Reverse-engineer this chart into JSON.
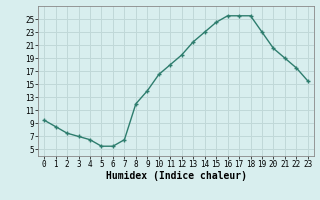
{
  "x": [
    0,
    1,
    2,
    3,
    4,
    5,
    6,
    7,
    8,
    9,
    10,
    11,
    12,
    13,
    14,
    15,
    16,
    17,
    18,
    19,
    20,
    21,
    22,
    23
  ],
  "y": [
    9.5,
    8.5,
    7.5,
    7.0,
    6.5,
    5.5,
    5.5,
    6.5,
    12.0,
    14.0,
    16.5,
    18.0,
    19.5,
    21.5,
    23.0,
    24.5,
    25.5,
    25.5,
    25.5,
    23.0,
    20.5,
    19.0,
    17.5,
    15.5
  ],
  "line_color": "#2e7d6e",
  "marker": "+",
  "bg_color": "#d8eeee",
  "grid_color": "#c0d8d8",
  "title": "",
  "xlabel": "Humidex (Indice chaleur)",
  "ylabel": "",
  "ylim": [
    4,
    27
  ],
  "xlim": [
    -0.5,
    23.5
  ],
  "yticks": [
    5,
    7,
    9,
    11,
    13,
    15,
    17,
    19,
    21,
    23,
    25
  ],
  "xticks": [
    0,
    1,
    2,
    3,
    4,
    5,
    6,
    7,
    8,
    9,
    10,
    11,
    12,
    13,
    14,
    15,
    16,
    17,
    18,
    19,
    20,
    21,
    22,
    23
  ],
  "tick_label_fontsize": 5.5,
  "xlabel_fontsize": 7.0,
  "linewidth": 1.0,
  "markersize": 3.5,
  "markeredgewidth": 1.0
}
